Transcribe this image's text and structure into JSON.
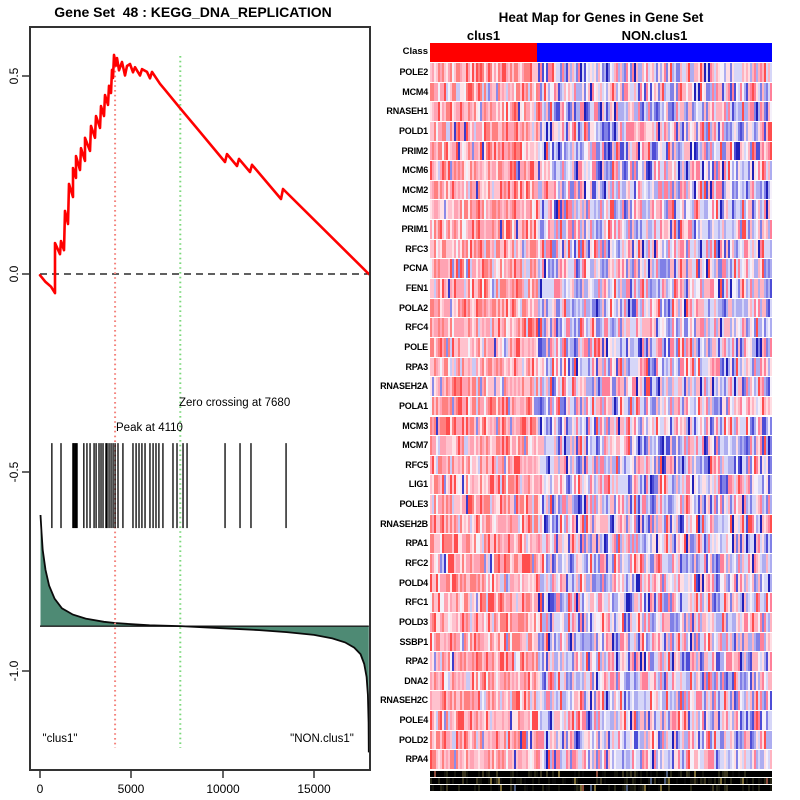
{
  "colors": {
    "es_line": "#ff0000",
    "peak_line": "#f4827c",
    "zero_cross_line": "#7cd87c",
    "metric_fill": "#4e8a74",
    "metric_stroke": "#0a0a0a",
    "baseline_stroke": "#1b1b1b",
    "zero_dash": "#000000",
    "box_border": "#333333",
    "hit_tick": "#000000",
    "class_red": "#ff0000",
    "class_blue": "#0000ff"
  },
  "chart_data": [
    {
      "type": "line",
      "title": "Gene Set  48 : KEGG_DNA_REPLICATION",
      "xlabel": "",
      "ylabel": "",
      "xlim": [
        0,
        18065
      ],
      "ylim": [
        -1.26,
        0.62
      ],
      "x_ticks": [
        0,
        5000,
        10000,
        15000
      ],
      "x_tick_labels": [
        "0",
        "5000",
        "10000",
        "15000"
      ],
      "y_ticks": [
        0.5,
        0.0,
        -0.5,
        -1.0
      ],
      "y_tick_labels": [
        "0.5",
        "0.0",
        "-0.5",
        "-1.0"
      ],
      "grid": false,
      "zero_line_es": 0.0,
      "peak_annotation": "Peak at 4110",
      "peak_x": 4110,
      "zero_crossing_annotation": "Zero crossing at 7680",
      "zero_crossing_x": 7680,
      "left_group_label": "\"clus1\"",
      "right_group_label": "\"NON.clus1\"",
      "n_genes_ranked": 18000,
      "es_curve": [
        [
          0,
          -0.003
        ],
        [
          300,
          -0.02
        ],
        [
          600,
          -0.032
        ],
        [
          820,
          -0.048
        ],
        [
          820,
          0.078
        ],
        [
          1095,
          0.05
        ],
        [
          1150,
          0.083
        ],
        [
          1314,
          0.06
        ],
        [
          1369,
          0.159
        ],
        [
          1533,
          0.126
        ],
        [
          1587,
          0.227
        ],
        [
          1806,
          0.194
        ],
        [
          1806,
          0.267
        ],
        [
          1970,
          0.242
        ],
        [
          1970,
          0.297
        ],
        [
          2190,
          0.262
        ],
        [
          2244,
          0.317
        ],
        [
          2463,
          0.285
        ],
        [
          2463,
          0.343
        ],
        [
          2737,
          0.31
        ],
        [
          2792,
          0.373
        ],
        [
          3011,
          0.343
        ],
        [
          3066,
          0.398
        ],
        [
          3285,
          0.368
        ],
        [
          3340,
          0.423
        ],
        [
          3504,
          0.398
        ],
        [
          3559,
          0.451
        ],
        [
          3723,
          0.426
        ],
        [
          3777,
          0.474
        ],
        [
          3887,
          0.456
        ],
        [
          3941,
          0.514
        ],
        [
          3996,
          0.494
        ],
        [
          4051,
          0.552
        ],
        [
          4160,
          0.525
        ],
        [
          4215,
          0.544
        ],
        [
          4325,
          0.513
        ],
        [
          4490,
          0.534
        ],
        [
          4653,
          0.5
        ],
        [
          4762,
          0.524
        ],
        [
          4927,
          0.529
        ],
        [
          5091,
          0.508
        ],
        [
          5200,
          0.521
        ],
        [
          5474,
          0.5
        ],
        [
          5583,
          0.516
        ],
        [
          5857,
          0.509
        ],
        [
          6021,
          0.493
        ],
        [
          6131,
          0.509
        ],
        [
          6569,
          0.479
        ],
        [
          6843,
          0.464
        ],
        [
          7664,
          0.418
        ],
        [
          8759,
          0.358
        ],
        [
          10128,
          0.282
        ],
        [
          10236,
          0.302
        ],
        [
          10784,
          0.272
        ],
        [
          10893,
          0.29
        ],
        [
          11495,
          0.257
        ],
        [
          11605,
          0.275
        ],
        [
          13192,
          0.189
        ],
        [
          13302,
          0.214
        ],
        [
          18000,
          0.0
        ]
      ],
      "hit_ranks": [
        650,
        1150,
        1800,
        1850,
        1910,
        1970,
        2030,
        2400,
        2570,
        2740,
        2960,
        3070,
        3230,
        3340,
        3450,
        3610,
        3670,
        3780,
        3890,
        4000,
        4110,
        4270,
        4540,
        5090,
        5260,
        5420,
        5580,
        5750,
        6020,
        6190,
        6350,
        6510,
        6730,
        7280,
        7500,
        7830,
        8050,
        10130,
        10950,
        11550,
        13470
      ],
      "hit_band_es": [
        -0.426,
        -0.64
      ],
      "ranked_metric_baseline_es": -0.887,
      "ranked_metric": [
        [
          30,
          -0.607
        ],
        [
          80,
          -0.65
        ],
        [
          150,
          -0.695
        ],
        [
          300,
          -0.745
        ],
        [
          500,
          -0.785
        ],
        [
          800,
          -0.818
        ],
        [
          1200,
          -0.842
        ],
        [
          1800,
          -0.858
        ],
        [
          2500,
          -0.868
        ],
        [
          3500,
          -0.876
        ],
        [
          4110,
          -0.879
        ],
        [
          5000,
          -0.882
        ],
        [
          6000,
          -0.885
        ],
        [
          7680,
          -0.887
        ],
        [
          9000,
          -0.89
        ],
        [
          10500,
          -0.8935
        ],
        [
          12000,
          -0.897
        ],
        [
          13500,
          -0.902
        ],
        [
          15000,
          -0.909
        ],
        [
          16000,
          -0.918
        ],
        [
          16700,
          -0.928
        ],
        [
          17200,
          -0.941
        ],
        [
          17550,
          -0.958
        ],
        [
          17750,
          -0.982
        ],
        [
          17880,
          -1.015
        ],
        [
          17950,
          -1.06
        ],
        [
          17990,
          -1.13
        ],
        [
          18000,
          -1.205
        ]
      ]
    },
    {
      "type": "heatmap",
      "title": "Heat Map for Genes in Gene Set",
      "class_label": "Class",
      "groups": [
        {
          "label": "clus1",
          "color": "#ff0000",
          "fraction": 0.313
        },
        {
          "label": "NON.clus1",
          "color": "#0000ff",
          "fraction": 0.687
        }
      ],
      "genes": [
        "POLE2",
        "MCM4",
        "RNASEH1",
        "POLD1",
        "PRIM2",
        "MCM6",
        "MCM2",
        "MCM5",
        "PRIM1",
        "RFC3",
        "PCNA",
        "FEN1",
        "POLA2",
        "RFC4",
        "POLE",
        "RPA3",
        "RNASEH2A",
        "POLA1",
        "MCM3",
        "MCM7",
        "RFC5",
        "LIG1",
        "POLE3",
        "RNASEH2B",
        "RPA1",
        "RFC2",
        "POLD4",
        "RFC1",
        "POLD3",
        "SSBP1",
        "RPA2",
        "DNA2",
        "RNASEH2C",
        "POLE4",
        "POLD2",
        "RPA4"
      ],
      "n_columns": 171,
      "render_seed": 42,
      "palette_clus1": [
        {
          "color": "#ff4d4d",
          "w": 0.1
        },
        {
          "color": "#ff8080",
          "w": 0.22
        },
        {
          "color": "#ffa3b3",
          "w": 0.25
        },
        {
          "color": "#ffc2ce",
          "w": 0.2
        },
        {
          "color": "#ffe3e8",
          "w": 0.1
        },
        {
          "color": "#f2f2fa",
          "w": 0.05
        },
        {
          "color": "#c9c9f5",
          "w": 0.05
        },
        {
          "color": "#8a8ae8",
          "w": 0.02
        },
        {
          "color": "#3c3ccb",
          "w": 0.01
        }
      ],
      "palette_non_clus1": [
        {
          "color": "#ff4d4d",
          "w": 0.05
        },
        {
          "color": "#ff8099",
          "w": 0.12
        },
        {
          "color": "#ffb3c0",
          "w": 0.15
        },
        {
          "color": "#ffdde3",
          "w": 0.08
        },
        {
          "color": "#f5f0fa",
          "w": 0.08
        },
        {
          "color": "#d6d6f8",
          "w": 0.18
        },
        {
          "color": "#adadf0",
          "w": 0.15
        },
        {
          "color": "#8080e6",
          "w": 0.1
        },
        {
          "color": "#4d4dd6",
          "w": 0.06
        },
        {
          "color": "#2020b8",
          "w": 0.03
        }
      ],
      "noise_band_palette": [
        {
          "color": "#000000",
          "w": 0.62
        },
        {
          "color": "#14140c",
          "w": 0.12
        },
        {
          "color": "#262616",
          "w": 0.1
        },
        {
          "color": "#0a0a0a",
          "w": 0.08
        },
        {
          "color": "#3a351f",
          "w": 0.04
        },
        {
          "color": "#7a6a35",
          "w": 0.02
        },
        {
          "color": "#8a4a3a",
          "w": 0.01
        },
        {
          "color": "#4a5a7a",
          "w": 0.01
        }
      ]
    }
  ]
}
